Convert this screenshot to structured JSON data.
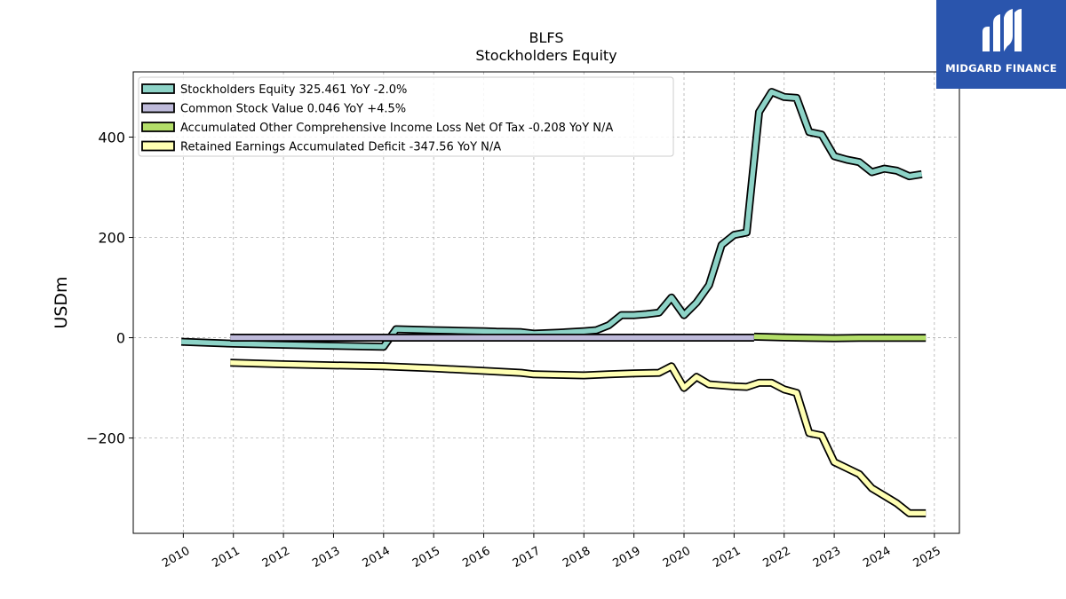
{
  "chart_data": {
    "type": "line",
    "title": "BLFS",
    "subtitle": "Stockholders  Equity",
    "ylabel": "USDm",
    "xlabel": "",
    "ylim": [
      -390,
      530
    ],
    "xlim": [
      2009.0,
      2025.5
    ],
    "yticks": [
      -200,
      0,
      200,
      400
    ],
    "ytick_labels": [
      "−200",
      "0",
      "200",
      "400"
    ],
    "xticks": [
      2010,
      2011,
      2012,
      2013,
      2014,
      2015,
      2016,
      2017,
      2018,
      2019,
      2020,
      2021,
      2022,
      2023,
      2024,
      2025
    ],
    "grid": true,
    "legend_position": "top-left",
    "series": [
      {
        "name": "Stockholders Equity  325.461 YoY -2.0%",
        "color": "#8dd3c7",
        "x": [
          2009.96,
          2010.5,
          2011.0,
          2012.0,
          2013.0,
          2014.0,
          2014.25,
          2015.0,
          2015.5,
          2016.0,
          2016.25,
          2016.75,
          2017.0,
          2017.5,
          2018.0,
          2018.25,
          2018.5,
          2018.75,
          2019.0,
          2019.25,
          2019.5,
          2019.75,
          2020.0,
          2020.25,
          2020.5,
          2020.75,
          2021.0,
          2021.25,
          2021.5,
          2021.75,
          2022.0,
          2022.25,
          2022.5,
          2022.75,
          2023.0,
          2023.25,
          2023.5,
          2023.75,
          2024.0,
          2024.25,
          2024.5,
          2024.75
        ],
        "values": [
          -8,
          -10,
          -12,
          -14,
          -16,
          -18,
          17,
          15,
          14,
          13,
          12,
          11,
          8,
          10,
          13,
          15,
          25,
          45,
          45,
          47,
          50,
          80,
          45,
          70,
          105,
          185,
          205,
          210,
          450,
          490,
          480,
          478,
          410,
          405,
          362,
          355,
          350,
          330,
          337,
          333,
          322,
          326
        ]
      },
      {
        "name": "Common Stock Value  0.046 YoY +4.5%",
        "color": "#bebada",
        "x": [
          2010.94,
          2021.4
        ],
        "values": [
          0.04,
          0.05
        ]
      },
      {
        "name": "Accumulated Other Comprehensive Income Loss Net Of Tax  -0.208 YoY N/A",
        "color": "#b3de69",
        "x": [
          2021.4,
          2022.0,
          2022.5,
          2023.0,
          2023.5,
          2024.0,
          2024.5,
          2024.83
        ],
        "values": [
          2.0,
          0.5,
          -0.5,
          -1.0,
          -0.5,
          -0.2,
          -0.4,
          -0.21
        ]
      },
      {
        "name": "Retained Earnings Accumulated Deficit  -347.56 YoY N/A",
        "color": "#ffffb3",
        "x": [
          2010.94,
          2012.0,
          2013.0,
          2014.0,
          2015.0,
          2016.0,
          2016.75,
          2017.0,
          2017.5,
          2018.0,
          2018.5,
          2019.0,
          2019.5,
          2019.75,
          2020.0,
          2020.25,
          2020.5,
          2020.75,
          2021.0,
          2021.25,
          2021.5,
          2021.75,
          2022.0,
          2022.25,
          2022.5,
          2022.75,
          2023.0,
          2023.25,
          2023.5,
          2023.75,
          2024.0,
          2024.25,
          2024.5,
          2024.83
        ],
        "values": [
          -50,
          -53,
          -55,
          -57,
          -61,
          -66,
          -70,
          -73,
          -74,
          -75,
          -73,
          -71,
          -70,
          -57,
          -100,
          -78,
          -93,
          -95,
          -97,
          -98,
          -90,
          -90,
          -103,
          -110,
          -190,
          -195,
          -248,
          -260,
          -272,
          -300,
          -315,
          -330,
          -350,
          -350
        ]
      }
    ]
  },
  "logo": {
    "brand": "MIDGARD FINANCE"
  }
}
